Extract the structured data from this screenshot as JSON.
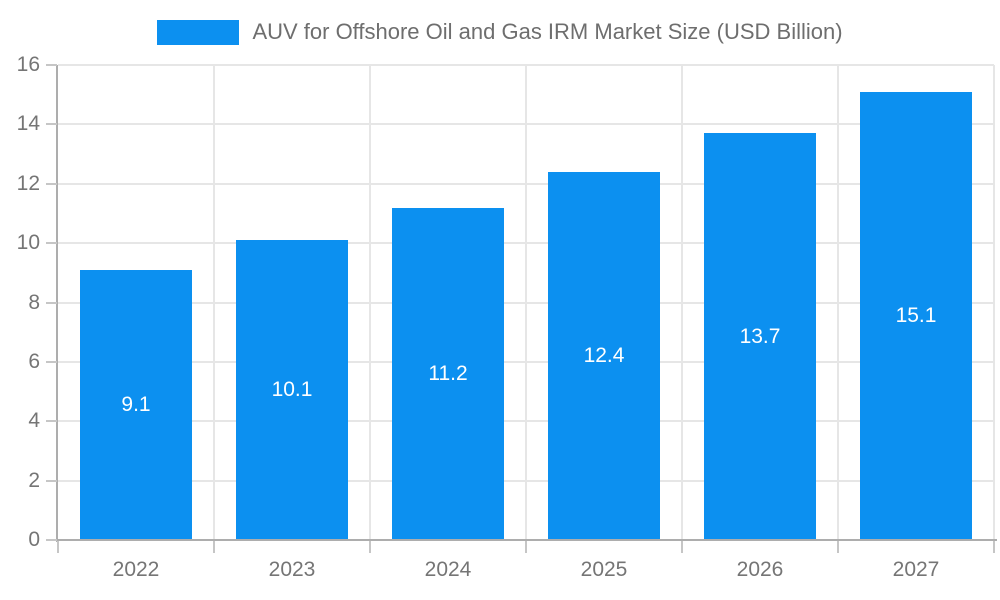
{
  "chart_data": {
    "type": "bar",
    "title": "AUV for Offshore Oil and Gas IRM Market Size (USD Billion)",
    "categories": [
      "2022",
      "2023",
      "2024",
      "2025",
      "2026",
      "2027"
    ],
    "values": [
      9.1,
      10.1,
      11.2,
      12.4,
      13.7,
      15.1
    ],
    "value_labels": [
      "9.1",
      "10.1",
      "11.2",
      "12.4",
      "13.7",
      "15.1"
    ],
    "xlabel": "",
    "ylabel": "",
    "ylim": [
      0,
      16
    ],
    "ytick_step": 2,
    "ytick_labels": [
      "0",
      "2",
      "4",
      "6",
      "8",
      "10",
      "12",
      "14",
      "16"
    ],
    "grid": true,
    "legend_position": "top"
  },
  "colors": {
    "background": "#FFFFFF",
    "bar": "#0C90F0",
    "grid_line": "#E6E6E6",
    "axis_line": "#ADADAD",
    "tick_mark": "#C6C6C6",
    "axis_text": "#757575",
    "title_text": "#6E6E6E",
    "value_text": "#FFFFFF"
  }
}
